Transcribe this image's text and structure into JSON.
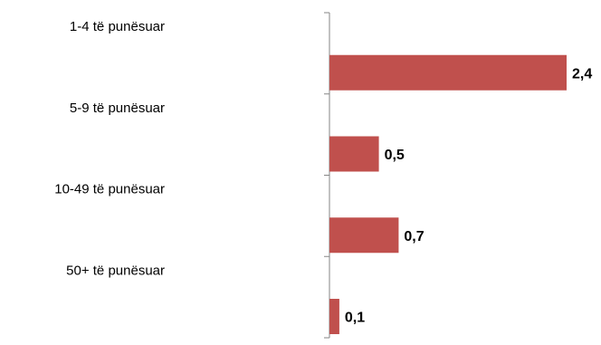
{
  "chart_data": {
    "type": "bar",
    "orientation": "horizontal",
    "categories": [
      "1-4 të punësuar",
      "5-9 të punësuar",
      "10-49 të punësuar",
      "50+ të punësuar"
    ],
    "values": [
      2.4,
      0.5,
      0.7,
      0.1
    ],
    "value_labels": [
      "2,4",
      "0,5",
      "0,7",
      "0,1"
    ],
    "title": "",
    "xlabel": "",
    "ylabel": "",
    "xlim": [
      0,
      2.4
    ],
    "grid": false,
    "legend": "none",
    "colors": {
      "bar": "#c0504d",
      "axis": "#868686",
      "text": "#000000"
    }
  }
}
